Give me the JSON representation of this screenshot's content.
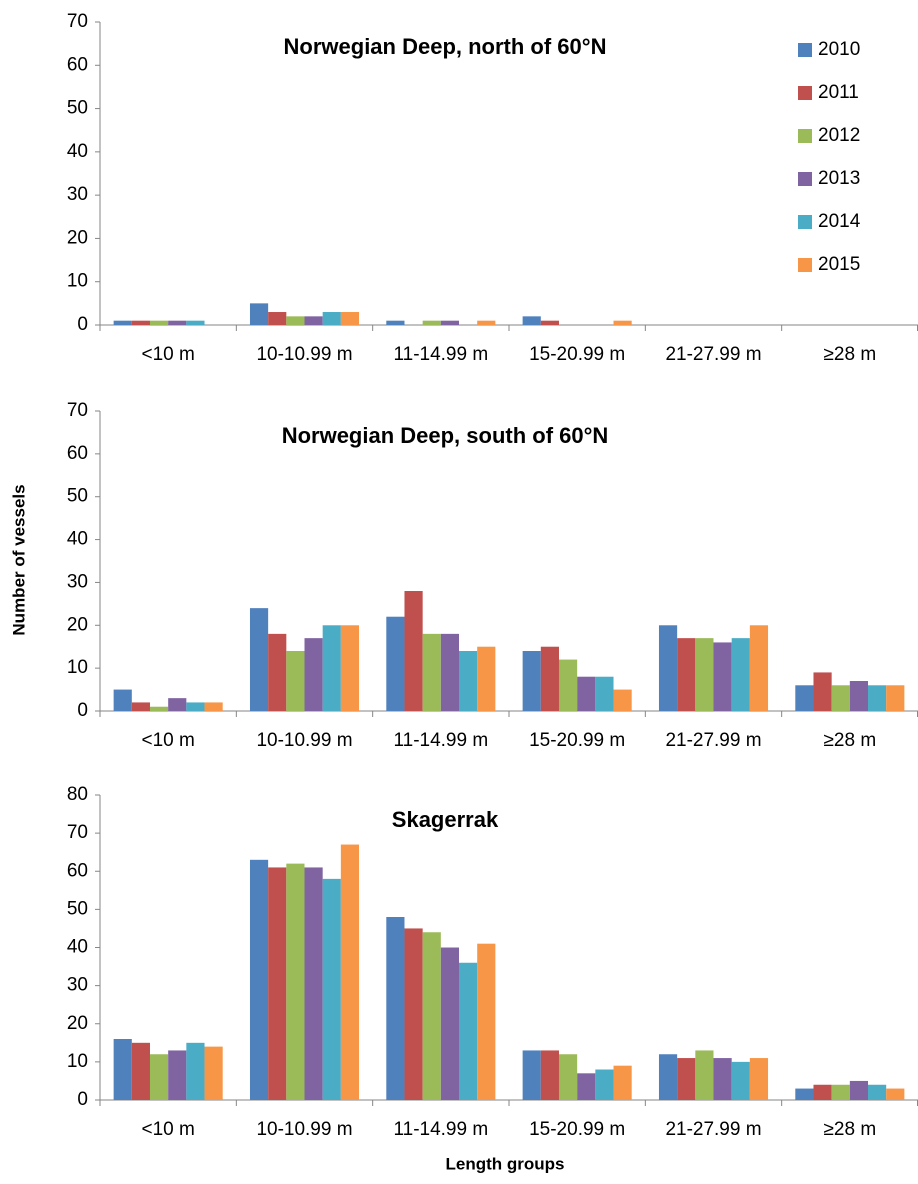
{
  "chart_data": [
    {
      "type": "bar",
      "title": "Norwegian Deep, north of 60°N",
      "categories": [
        "<10 m",
        "10-10.99 m",
        "11-14.99 m",
        "15-20.99 m",
        "21-27.99 m",
        "≥28 m"
      ],
      "series": [
        {
          "name": "2010",
          "color": "#4f81bd",
          "values": [
            1,
            5,
            1,
            2,
            0,
            0
          ]
        },
        {
          "name": "2011",
          "color": "#c0504d",
          "values": [
            1,
            3,
            0,
            1,
            0,
            0
          ]
        },
        {
          "name": "2012",
          "color": "#9bbb59",
          "values": [
            1,
            2,
            1,
            0,
            0,
            0
          ]
        },
        {
          "name": "2013",
          "color": "#8064a2",
          "values": [
            1,
            2,
            1,
            0,
            0,
            0
          ]
        },
        {
          "name": "2014",
          "color": "#4bacc6",
          "values": [
            1,
            3,
            0,
            0,
            0,
            0
          ]
        },
        {
          "name": "2015",
          "color": "#f79646",
          "values": [
            0,
            3,
            1,
            1,
            0,
            0
          ]
        }
      ],
      "ylim": [
        0,
        70
      ],
      "yticks": [
        0,
        10,
        20,
        30,
        40,
        50,
        60,
        70
      ],
      "legend": "upper right"
    },
    {
      "type": "bar",
      "title": "Norwegian Deep, south of 60°N",
      "ylabel": "Number of vessels",
      "categories": [
        "<10 m",
        "10-10.99 m",
        "11-14.99 m",
        "15-20.99 m",
        "21-27.99 m",
        "≥28 m"
      ],
      "series": [
        {
          "name": "2010",
          "color": "#4f81bd",
          "values": [
            5,
            24,
            22,
            14,
            20,
            6
          ]
        },
        {
          "name": "2011",
          "color": "#c0504d",
          "values": [
            2,
            18,
            28,
            15,
            17,
            9
          ]
        },
        {
          "name": "2012",
          "color": "#9bbb59",
          "values": [
            1,
            14,
            18,
            12,
            17,
            6
          ]
        },
        {
          "name": "2013",
          "color": "#8064a2",
          "values": [
            3,
            17,
            18,
            8,
            16,
            7
          ]
        },
        {
          "name": "2014",
          "color": "#4bacc6",
          "values": [
            2,
            20,
            14,
            8,
            17,
            6
          ]
        },
        {
          "name": "2015",
          "color": "#f79646",
          "values": [
            2,
            20,
            15,
            5,
            20,
            6
          ]
        }
      ],
      "ylim": [
        0,
        70
      ],
      "yticks": [
        0,
        10,
        20,
        30,
        40,
        50,
        60,
        70
      ]
    },
    {
      "type": "bar",
      "title": "Skagerrak",
      "xlabel": "Length groups",
      "categories": [
        "<10 m",
        "10-10.99 m",
        "11-14.99 m",
        "15-20.99 m",
        "21-27.99 m",
        "≥28 m"
      ],
      "series": [
        {
          "name": "2010",
          "color": "#4f81bd",
          "values": [
            16,
            63,
            48,
            13,
            12,
            3
          ]
        },
        {
          "name": "2011",
          "color": "#c0504d",
          "values": [
            15,
            61,
            45,
            13,
            11,
            4
          ]
        },
        {
          "name": "2012",
          "color": "#9bbb59",
          "values": [
            12,
            62,
            44,
            12,
            13,
            4
          ]
        },
        {
          "name": "2013",
          "color": "#8064a2",
          "values": [
            13,
            61,
            40,
            7,
            11,
            5
          ]
        },
        {
          "name": "2014",
          "color": "#4bacc6",
          "values": [
            15,
            58,
            36,
            8,
            10,
            4
          ]
        },
        {
          "name": "2015",
          "color": "#f79646",
          "values": [
            14,
            67,
            41,
            9,
            11,
            3
          ]
        }
      ],
      "ylim": [
        0,
        80
      ],
      "yticks": [
        0,
        10,
        20,
        30,
        40,
        50,
        60,
        70,
        80
      ]
    }
  ]
}
